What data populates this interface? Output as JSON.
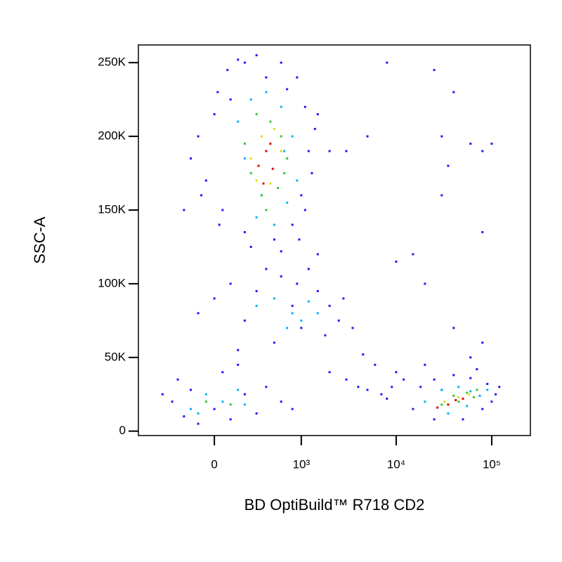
{
  "chart_data": {
    "type": "scatter",
    "x_label": "BD OptiBuild™ R718 CD2",
    "y_label": "SSC-A",
    "xscale": "biexponential",
    "xlim": [
      -760,
      254000
    ],
    "ylim": [
      -3000,
      262000
    ],
    "xticks": [
      0,
      {
        "value": 1000,
        "label": "10³"
      },
      {
        "value": 10000,
        "label": "10⁴"
      },
      {
        "value": 100000,
        "label": "10⁵"
      }
    ],
    "yticks": [
      0,
      {
        "value": 50000,
        "label": "50K"
      },
      {
        "value": 100000,
        "label": "100K"
      },
      {
        "value": 150000,
        "label": "150K"
      },
      {
        "value": 200000,
        "label": "200K"
      },
      {
        "value": 250000,
        "label": "250K"
      }
    ],
    "series": [
      {
        "color": "#1a1aff",
        "x": [
          20,
          80,
          150,
          300,
          600,
          900,
          1100,
          1200,
          1000,
          800,
          500,
          200,
          50,
          -50,
          -100,
          0,
          100,
          400,
          700,
          1300,
          -150,
          -80,
          30,
          250,
          600,
          950,
          1100,
          1400,
          200,
          -200,
          1500,
          100,
          300,
          600,
          900,
          1500,
          2000,
          2500,
          1800,
          1000,
          500,
          200,
          0,
          -100,
          400,
          1200,
          800,
          2800,
          3500,
          150,
          -300,
          -200,
          -100,
          0,
          100,
          200,
          300,
          -250,
          50,
          400,
          600,
          800,
          -400,
          150,
          -150,
          2000,
          3000,
          4000,
          5000,
          7000,
          9000,
          12000,
          6000,
          4500,
          8000,
          10000,
          20000,
          15000,
          18000,
          25000,
          40000,
          60000,
          90000,
          110000,
          120000,
          80000,
          50000,
          25000,
          30000,
          100000,
          70000,
          5000,
          3000,
          8000,
          25000,
          40000,
          30000,
          35000,
          60000,
          80000,
          100000,
          30000,
          20000,
          40000,
          60000,
          80000,
          15000,
          10000,
          2000,
          1500,
          80000
        ],
        "values": [
          230000,
          245000,
          252000,
          255000,
          250000,
          240000,
          220000,
          190000,
          160000,
          140000,
          130000,
          135000,
          150000,
          170000,
          200000,
          215000,
          225000,
          240000,
          232000,
          175000,
          185000,
          160000,
          140000,
          125000,
          122000,
          130000,
          150000,
          205000,
          250000,
          150000,
          120000,
          100000,
          95000,
          105000,
          100000,
          95000,
          85000,
          75000,
          65000,
          70000,
          60000,
          75000,
          90000,
          80000,
          110000,
          110000,
          85000,
          90000,
          70000,
          55000,
          20000,
          10000,
          5000,
          15000,
          8000,
          25000,
          12000,
          35000,
          40000,
          30000,
          20000,
          15000,
          25000,
          45000,
          28000,
          40000,
          35000,
          30000,
          28000,
          25000,
          30000,
          35000,
          45000,
          52000,
          22000,
          40000,
          45000,
          15000,
          30000,
          35000,
          38000,
          36000,
          32000,
          25000,
          30000,
          15000,
          8000,
          8000,
          28000,
          20000,
          42000,
          200000,
          190000,
          250000,
          245000,
          230000,
          200000,
          180000,
          195000,
          190000,
          195000,
          160000,
          100000,
          70000,
          50000,
          60000,
          120000,
          115000,
          190000,
          215000,
          135000
        ]
      },
      {
        "color": "#00b0ff",
        "x": [
          150,
          250,
          400,
          600,
          800,
          900,
          300,
          500,
          700,
          200,
          350,
          650,
          300,
          500,
          800,
          1000,
          1200,
          1500,
          700,
          -150,
          -50,
          50,
          150,
          200,
          -100,
          20000,
          30000,
          45000,
          60000,
          75000,
          90000,
          35000,
          55000
        ],
        "values": [
          210000,
          225000,
          230000,
          220000,
          200000,
          170000,
          145000,
          140000,
          155000,
          185000,
          160000,
          190000,
          85000,
          90000,
          80000,
          75000,
          88000,
          80000,
          70000,
          15000,
          25000,
          20000,
          28000,
          18000,
          12000,
          20000,
          28000,
          30000,
          27000,
          24000,
          28000,
          12000,
          17000
        ]
      },
      {
        "color": "#30c830",
        "x": [
          200,
          300,
          450,
          600,
          700,
          350,
          550,
          400,
          250,
          650,
          -50,
          100,
          30000,
          40000,
          55000,
          70000,
          45000,
          65000
        ],
        "values": [
          195000,
          215000,
          210000,
          200000,
          185000,
          160000,
          165000,
          150000,
          175000,
          175000,
          20000,
          18000,
          18000,
          24000,
          26000,
          28000,
          20000,
          23000
        ]
      },
      {
        "color": "#e0e000",
        "x": [
          250,
          350,
          500,
          600,
          450,
          300,
          32000,
          45000,
          58000
        ],
        "values": [
          185000,
          200000,
          205000,
          190000,
          168000,
          170000,
          20000,
          23000,
          25000
        ]
      },
      {
        "color": "#e00000",
        "x": [
          320,
          400,
          480,
          370,
          450,
          27000,
          35000,
          42000,
          50000
        ],
        "values": [
          180000,
          190000,
          178000,
          168000,
          195000,
          16000,
          18000,
          21000,
          22000
        ]
      }
    ]
  }
}
